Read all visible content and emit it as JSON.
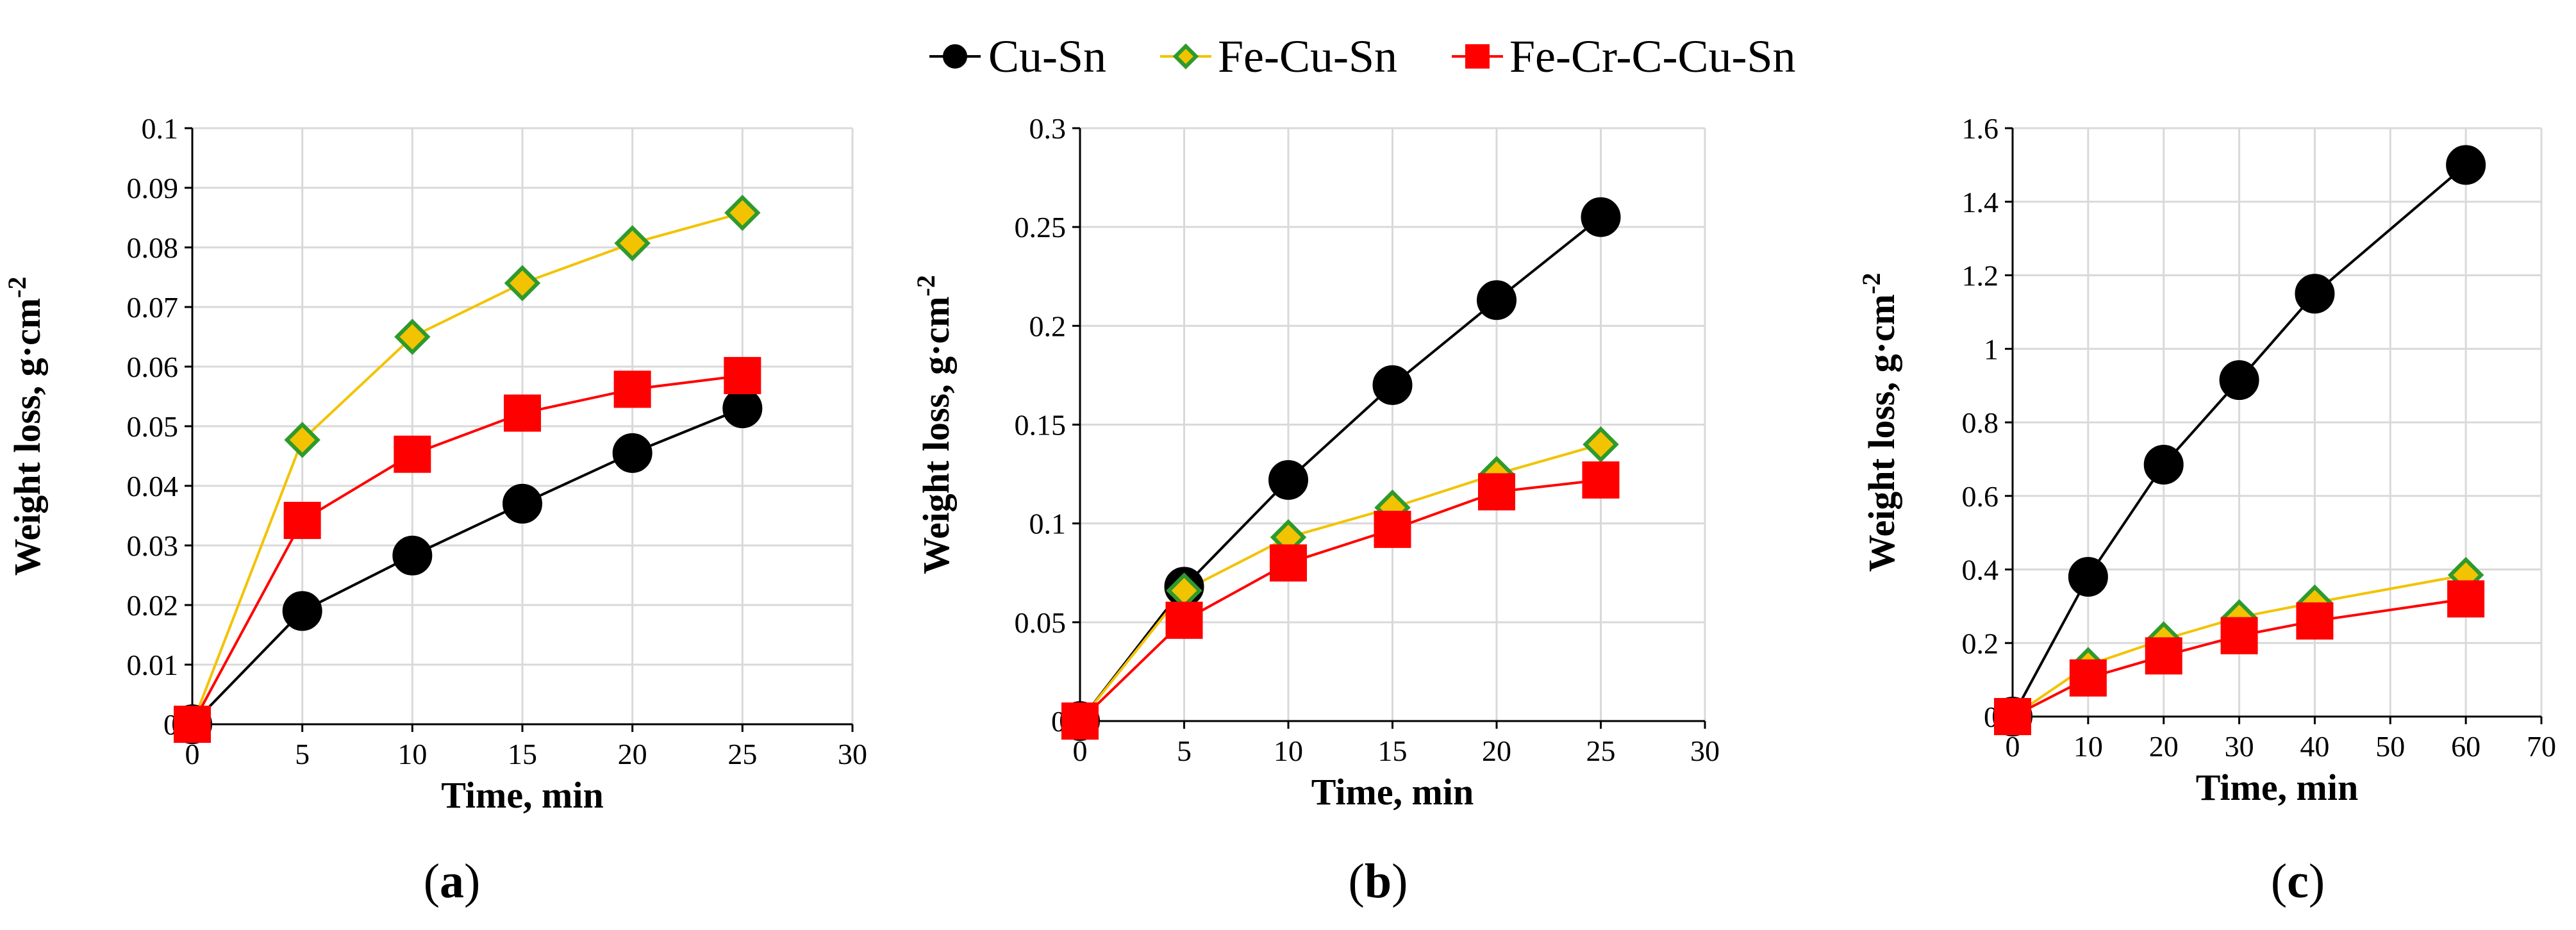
{
  "legend": [
    "Cu-Sn",
    "Fe-Cu-Sn",
    "Fe-Cr-C-Cu-Sn"
  ],
  "colors": {
    "cusn_line": "#000000",
    "cusn_marker": "#000000",
    "fecusn_line": "#F2C300",
    "fecusn_fill": "#F2C300",
    "fecusn_edge": "#2E9A2E",
    "fecrc_line": "#FF0000",
    "fecrc_fill": "#FF0000",
    "grid": "#D9D9D9",
    "axis": "#000000"
  },
  "chart_data": [
    {
      "type": "line",
      "panel_label": "(a)",
      "xlabel": "Time, min",
      "ylabel": "Weight loss, g·cm",
      "ylabel_sup": "-2",
      "xlim": [
        0,
        30
      ],
      "ylim": [
        0,
        0.1
      ],
      "xticks": [
        0,
        5,
        10,
        15,
        20,
        25,
        30
      ],
      "yticks": [
        0,
        0.01,
        0.02,
        0.03,
        0.04,
        0.05,
        0.06,
        0.07,
        0.08,
        0.09,
        0.1
      ],
      "grid": true,
      "x": [
        0,
        5,
        10,
        15,
        20,
        25
      ],
      "series": [
        {
          "name": "Cu-Sn",
          "values": [
            0,
            0.019,
            0.0283,
            0.037,
            0.0455,
            0.053
          ]
        },
        {
          "name": "Fe-Cu-Sn",
          "values": [
            0,
            0.0477,
            0.065,
            0.074,
            0.0807,
            0.0858
          ]
        },
        {
          "name": "Fe-Cr-C-Cu-Sn",
          "values": [
            0,
            0.0342,
            0.0453,
            0.0522,
            0.0562,
            0.0585
          ]
        }
      ]
    },
    {
      "type": "line",
      "panel_label": "(b)",
      "xlabel": "Time, min",
      "ylabel": "Weight loss, g·cm",
      "ylabel_sup": "-2",
      "xlim": [
        0,
        30
      ],
      "ylim": [
        0,
        0.3
      ],
      "xticks": [
        0,
        5,
        10,
        15,
        20,
        25,
        30
      ],
      "yticks": [
        0,
        0.05,
        0.1,
        0.15,
        0.2,
        0.25,
        0.3
      ],
      "grid": true,
      "x": [
        0,
        5,
        10,
        15,
        20,
        25
      ],
      "series": [
        {
          "name": "Cu-Sn",
          "values": [
            0,
            0.068,
            0.122,
            0.17,
            0.213,
            0.255
          ]
        },
        {
          "name": "Fe-Cu-Sn",
          "values": [
            0,
            0.066,
            0.093,
            0.108,
            0.125,
            0.14
          ]
        },
        {
          "name": "Fe-Cr-C-Cu-Sn",
          "values": [
            0,
            0.051,
            0.08,
            0.097,
            0.116,
            0.122
          ]
        }
      ]
    },
    {
      "type": "line",
      "panel_label": "(c)",
      "xlabel": "Time, min",
      "ylabel": "Weight loss, g·cm",
      "ylabel_sup": "-2",
      "xlim": [
        0,
        70
      ],
      "ylim": [
        0,
        1.6
      ],
      "xticks": [
        0,
        10,
        20,
        30,
        40,
        50,
        60,
        70
      ],
      "yticks": [
        0,
        0.2,
        0.4,
        0.6,
        0.8,
        1,
        1.2,
        1.4,
        1.6
      ],
      "grid": true,
      "x": [
        0,
        10,
        20,
        30,
        40,
        60
      ],
      "series": [
        {
          "name": "Cu-Sn",
          "values": [
            0,
            0.38,
            0.685,
            0.915,
            1.15,
            1.5
          ]
        },
        {
          "name": "Fe-Cu-Sn",
          "values": [
            0,
            0.14,
            0.21,
            0.27,
            0.31,
            0.385
          ]
        },
        {
          "name": "Fe-Cr-C-Cu-Sn",
          "values": [
            0,
            0.105,
            0.165,
            0.22,
            0.26,
            0.32
          ]
        }
      ]
    }
  ]
}
